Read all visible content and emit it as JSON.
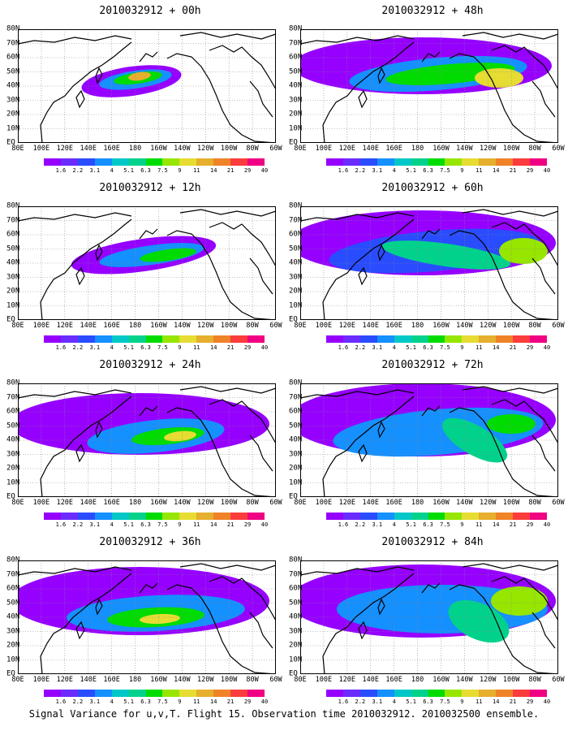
{
  "panels": [
    {
      "title": "2010032912 + 00h",
      "lead": "00h"
    },
    {
      "title": "2010032912 + 48h",
      "lead": "48h"
    },
    {
      "title": "2010032912 + 12h",
      "lead": "12h"
    },
    {
      "title": "2010032912 + 60h",
      "lead": "60h"
    },
    {
      "title": "2010032912 + 24h",
      "lead": "24h"
    },
    {
      "title": "2010032912 + 72h",
      "lead": "72h"
    },
    {
      "title": "2010032912 + 36h",
      "lead": "36h"
    },
    {
      "title": "2010032912 + 84h",
      "lead": "84h"
    }
  ],
  "lat_labels": [
    "80N",
    "70N",
    "60N",
    "50N",
    "40N",
    "30N",
    "20N",
    "10N",
    "EQ"
  ],
  "lon_labels": [
    "80E",
    "100E",
    "120E",
    "140E",
    "160E",
    "180",
    "160W",
    "140W",
    "120W",
    "100W",
    "80W",
    "60W"
  ],
  "colorbar": {
    "labels": [
      "1.6",
      "2.2",
      "3.1",
      "4",
      "5.1",
      "6.3",
      "7.5",
      "9",
      "11",
      "14",
      "21",
      "29",
      "40"
    ],
    "colors": [
      "#9600ff",
      "#6a2cff",
      "#2a4cff",
      "#1590ff",
      "#00c8c8",
      "#00d28c",
      "#00dc00",
      "#96e600",
      "#e6dc32",
      "#e6af2d",
      "#f08228",
      "#fa3c3c",
      "#f00082"
    ]
  },
  "footer": "Signal Variance for u,v,T. Flight 15. Observation time 2010032912. 2010032500 ensemble."
}
